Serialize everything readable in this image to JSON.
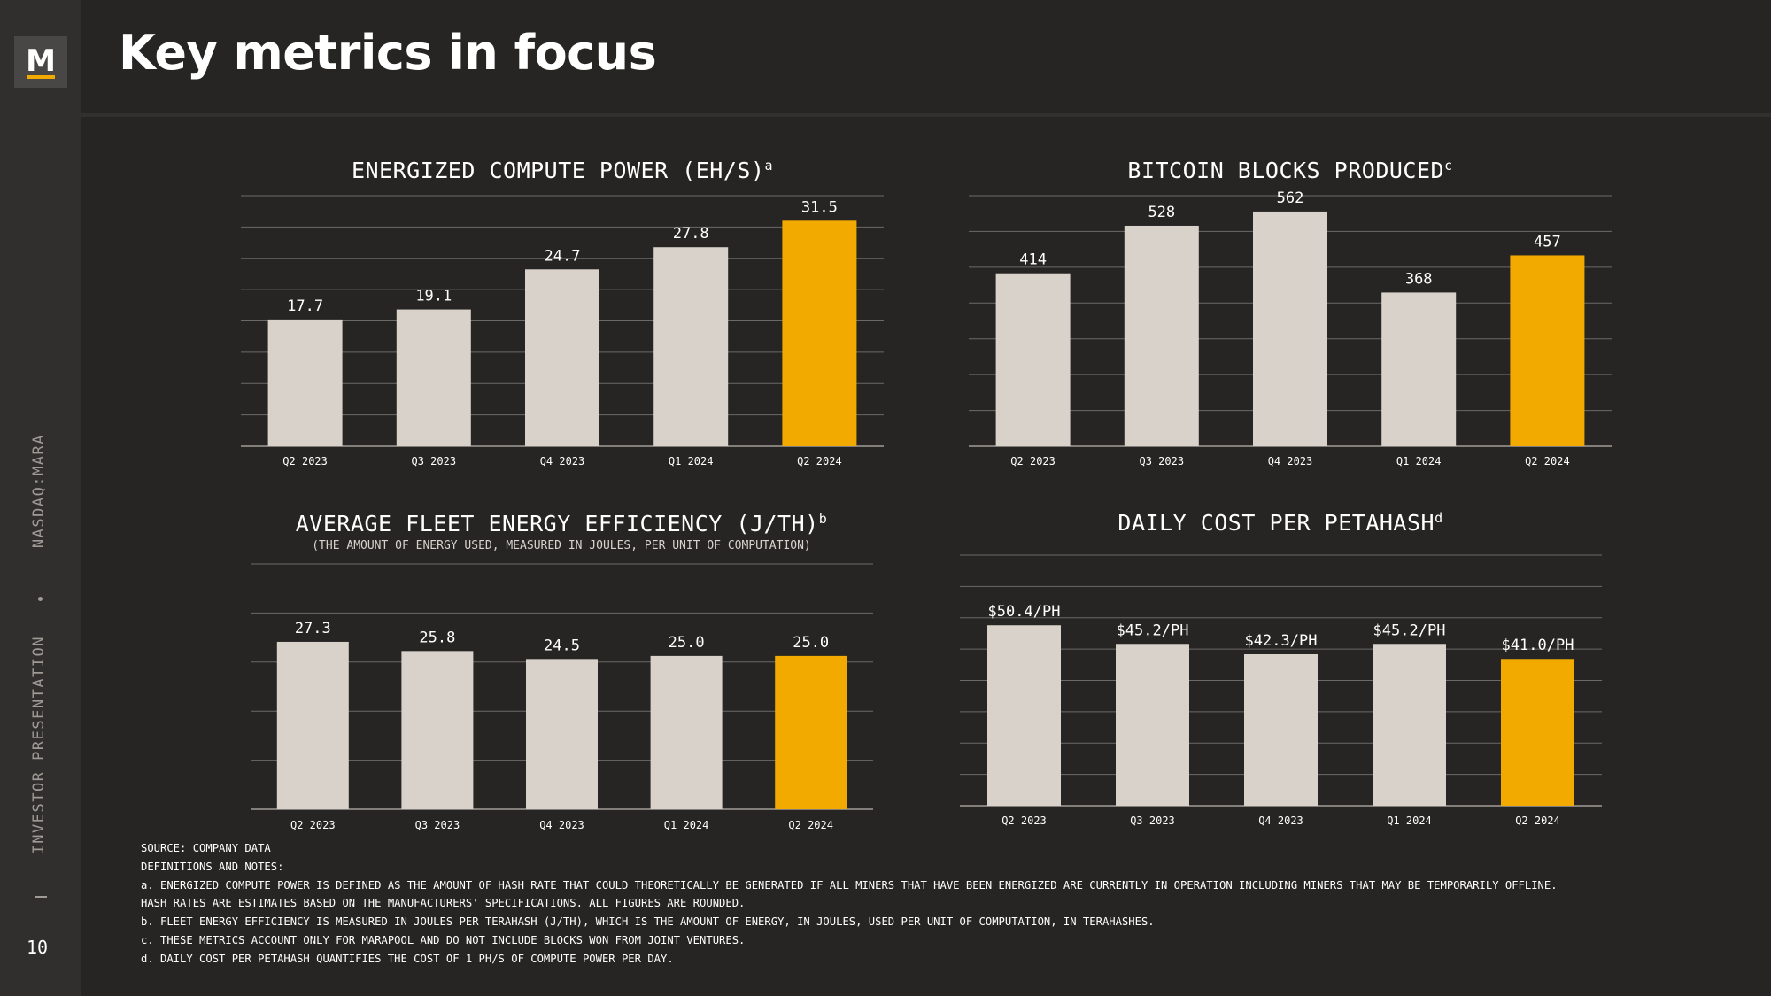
{
  "sidebar": {
    "logo_letter": "M",
    "vertical_text_top": "NASDAQ:MARA",
    "vertical_text_bottom": "INVESTOR PRESENTATION",
    "page_number": "10"
  },
  "header": {
    "title": "Key metrics in focus"
  },
  "colors": {
    "bar": "#d8d2cb",
    "highlight": "#f2a900",
    "background": "#262523"
  },
  "chart_data": [
    {
      "type": "bar",
      "title": "ENERGIZED COMPUTE POWER (EH/S)",
      "title_sup": "a",
      "subtitle": "",
      "categories": [
        "Q2 2023",
        "Q3 2023",
        "Q4 2023",
        "Q1 2024",
        "Q2 2024"
      ],
      "values": [
        17.7,
        19.1,
        24.7,
        27.8,
        31.5
      ],
      "value_labels": [
        "17.7",
        "19.1",
        "24.7",
        "27.8",
        "31.5"
      ],
      "highlight_index": 4,
      "ylim": [
        0,
        35
      ],
      "grid": true
    },
    {
      "type": "bar",
      "title": "BITCOIN BLOCKS PRODUCED",
      "title_sup": "c",
      "subtitle": "",
      "categories": [
        "Q2 2023",
        "Q3 2023",
        "Q4 2023",
        "Q1 2024",
        "Q2 2024"
      ],
      "values": [
        414,
        528,
        562,
        368,
        457
      ],
      "value_labels": [
        "414",
        "528",
        "562",
        "368",
        "457"
      ],
      "highlight_index": 4,
      "ylim": [
        0,
        600
      ],
      "grid": true
    },
    {
      "type": "bar",
      "title": "AVERAGE FLEET ENERGY EFFICIENCY (J/TH)",
      "title_sup": "b",
      "subtitle": "(THE AMOUNT OF ENERGY USED, MEASURED IN JOULES, PER UNIT OF COMPUTATION)",
      "categories": [
        "Q2 2023",
        "Q3 2023",
        "Q4 2023",
        "Q1 2024",
        "Q2 2024"
      ],
      "values": [
        27.3,
        25.8,
        24.5,
        25.0,
        25.0
      ],
      "value_labels": [
        "27.3",
        "25.8",
        "24.5",
        "25.0",
        "25.0"
      ],
      "highlight_index": 4,
      "ylim": [
        0,
        40
      ],
      "grid": true
    },
    {
      "type": "bar",
      "title": "DAILY COST PER PETAHASH",
      "title_sup": "d",
      "subtitle": "",
      "categories": [
        "Q2 2023",
        "Q3 2023",
        "Q4 2023",
        "Q1 2024",
        "Q2 2024"
      ],
      "values": [
        50.4,
        45.2,
        42.3,
        45.2,
        41.0
      ],
      "value_labels": [
        "$50.4/PH",
        "$45.2/PH",
        "$42.3/PH",
        "$45.2/PH",
        "$41.0/PH"
      ],
      "highlight_index": 4,
      "ylim": [
        0,
        70
      ],
      "grid": true
    }
  ],
  "notes": [
    "SOURCE: COMPANY DATA",
    "DEFINITIONS AND NOTES:",
    "a. ENERGIZED COMPUTE POWER IS DEFINED AS THE AMOUNT OF HASH RATE THAT COULD THEORETICALLY BE GENERATED IF ALL MINERS THAT HAVE BEEN ENERGIZED ARE CURRENTLY IN OPERATION INCLUDING MINERS THAT MAY BE TEMPORARILY OFFLINE.",
    "HASH RATES ARE ESTIMATES BASED ON THE MANUFACTURERS' SPECIFICATIONS. ALL FIGURES ARE ROUNDED.",
    "b. FLEET ENERGY EFFICIENCY IS MEASURED IN JOULES PER TERAHASH (J/TH), WHICH IS THE AMOUNT OF ENERGY, IN JOULES, USED PER UNIT OF COMPUTATION, IN TERAHASHES.",
    "c. THESE METRICS ACCOUNT ONLY FOR MARAPOOL AND DO NOT INCLUDE BLOCKS WON FROM JOINT VENTURES.",
    "d. DAILY COST PER PETAHASH QUANTIFIES THE COST OF 1 PH/S OF COMPUTE POWER PER DAY."
  ]
}
